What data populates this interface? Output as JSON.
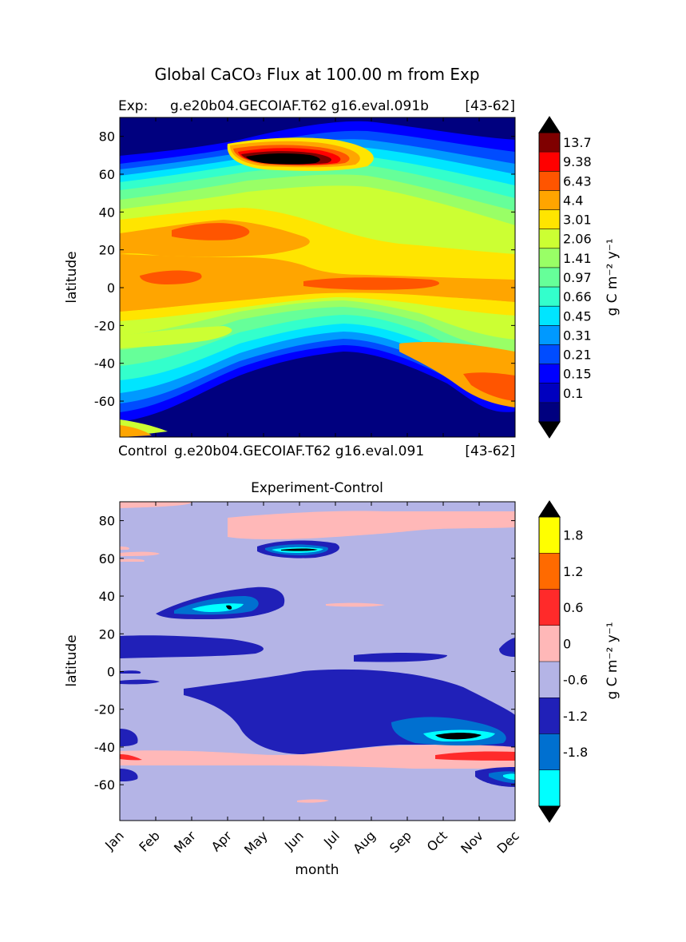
{
  "figure": {
    "title": "Global CaCO₃ Flux at 100.00 m from Exp",
    "top_panel": {
      "left_caption": "Exp:",
      "case_name": "g.e20b04.GECOIAF.T62 g16.eval.091b",
      "years": "[43-62]",
      "bottom_left_caption": "Control",
      "bottom_case_name": "g.e20b04.GECOIAF.T62 g16.eval.091",
      "bottom_years": "[43-62]"
    },
    "bottom_panel": {
      "title": "Experiment-Control"
    }
  },
  "chart_data": [
    {
      "type": "heatmap",
      "subtype": "filled-contour",
      "title": "Global CaCO₃ Flux at 100.00 m from Exp",
      "xlabel": "",
      "ylabel": "latitude",
      "x": [
        "Jan",
        "Feb",
        "Mar",
        "Apr",
        "May",
        "Jun",
        "Jul",
        "Aug",
        "Sep",
        "Oct",
        "Nov",
        "Dec"
      ],
      "xlim": [
        1,
        12
      ],
      "ylim": [
        -79,
        90
      ],
      "y_ticks": [
        80,
        60,
        40,
        20,
        0,
        -20,
        -40,
        -60
      ],
      "colorbar": {
        "label": "g C m⁻² y⁻¹",
        "levels": [
          "0.1",
          "0.15",
          "0.21",
          "0.31",
          "0.45",
          "0.66",
          "0.97",
          "1.41",
          "2.06",
          "3.01",
          "4.4",
          "6.43",
          "9.38",
          "13.7"
        ],
        "colors": [
          "#00007f",
          "#0000bf",
          "#0000ff",
          "#004cff",
          "#0099ff",
          "#00e5ff",
          "#33ffcc",
          "#66ff99",
          "#99ff66",
          "#ccff33",
          "#ffe500",
          "#ffa500",
          "#ff5500",
          "#ff0000",
          "#7f0000"
        ],
        "extend": "both"
      }
    },
    {
      "type": "heatmap",
      "subtype": "filled-contour",
      "title": "Experiment-Control",
      "xlabel": "month",
      "ylabel": "latitude",
      "x": [
        "Jan",
        "Feb",
        "Mar",
        "Apr",
        "May",
        "Jun",
        "Jul",
        "Aug",
        "Sep",
        "Oct",
        "Nov",
        "Dec"
      ],
      "xlim": [
        1,
        12
      ],
      "ylim": [
        -79,
        90
      ],
      "y_ticks": [
        80,
        60,
        40,
        20,
        0,
        -20,
        -40,
        -60
      ],
      "colorbar": {
        "label": "g C m⁻² y⁻¹",
        "levels": [
          "-1.8",
          "-1.2",
          "-0.6",
          "0",
          "0.6",
          "1.2",
          "1.8"
        ],
        "colors": [
          "#00ffff",
          "#0070d0",
          "#2020b8",
          "#b4b4e6",
          "#ffb8b8",
          "#ff2a2a",
          "#ff6a00",
          "#ffff00"
        ],
        "extend": "both"
      }
    }
  ]
}
